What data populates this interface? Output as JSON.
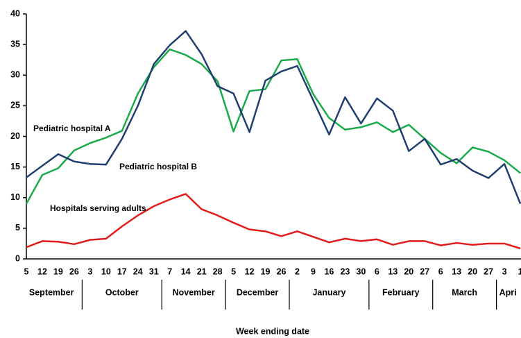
{
  "chart_data": {
    "type": "line",
    "x_label": "Week ending date",
    "categories": [
      "5",
      "12",
      "19",
      "26",
      "3",
      "10",
      "17",
      "24",
      "31",
      "7",
      "14",
      "21",
      "28",
      "5",
      "12",
      "19",
      "26",
      "2",
      "9",
      "16",
      "23",
      "30",
      "6",
      "13",
      "20",
      "27",
      "6",
      "13",
      "20",
      "27",
      "3",
      "1"
    ],
    "x_groups": [
      {
        "label": "September",
        "span": 4
      },
      {
        "label": "October",
        "span": 5
      },
      {
        "label": "November",
        "span": 4
      },
      {
        "label": "December",
        "span": 4
      },
      {
        "label": "January",
        "span": 5
      },
      {
        "label": "February",
        "span": 4
      },
      {
        "label": "March",
        "span": 4
      },
      {
        "label": "Apri",
        "span": 2
      }
    ],
    "series": [
      {
        "name": "Pediatric hospital A",
        "color": "#1aaa4a",
        "values": [
          9.0,
          13.7,
          14.8,
          17.7,
          18.9,
          19.8,
          20.9,
          27.0,
          31.3,
          34.2,
          33.3,
          31.8,
          29.0,
          20.8,
          27.4,
          27.7,
          32.4,
          32.6,
          26.9,
          23.0,
          21.1,
          21.5,
          22.3,
          20.7,
          21.9,
          19.6,
          17.3,
          15.6,
          18.2,
          17.5,
          16.1,
          14.0
        ]
      },
      {
        "name": "Pediatric hospital B",
        "color": "#1f3f6e",
        "values": [
          13.3,
          15.2,
          17.1,
          15.9,
          15.5,
          15.4,
          19.6,
          25.0,
          31.8,
          34.9,
          37.2,
          33.4,
          28.2,
          27.0,
          20.7,
          29.1,
          30.6,
          31.5,
          25.9,
          20.3,
          26.4,
          22.1,
          26.2,
          24.2,
          17.6,
          19.6,
          15.4,
          16.3,
          14.4,
          13.2,
          15.5,
          9.0
        ]
      },
      {
        "name": "Hospitals serving adults",
        "color": "#e31b1b",
        "values": [
          1.9,
          2.9,
          2.8,
          2.4,
          3.1,
          3.3,
          5.3,
          7.1,
          8.6,
          9.7,
          10.6,
          8.1,
          7.1,
          5.9,
          4.8,
          4.5,
          3.7,
          4.5,
          3.6,
          2.7,
          3.3,
          2.9,
          3.2,
          2.3,
          2.9,
          2.9,
          2.2,
          2.6,
          2.3,
          2.5,
          2.5,
          1.7
        ]
      }
    ],
    "ylim": [
      0,
      40
    ],
    "yticks": [
      0,
      5,
      10,
      15,
      20,
      25,
      30,
      35,
      40
    ],
    "grid": false
  }
}
